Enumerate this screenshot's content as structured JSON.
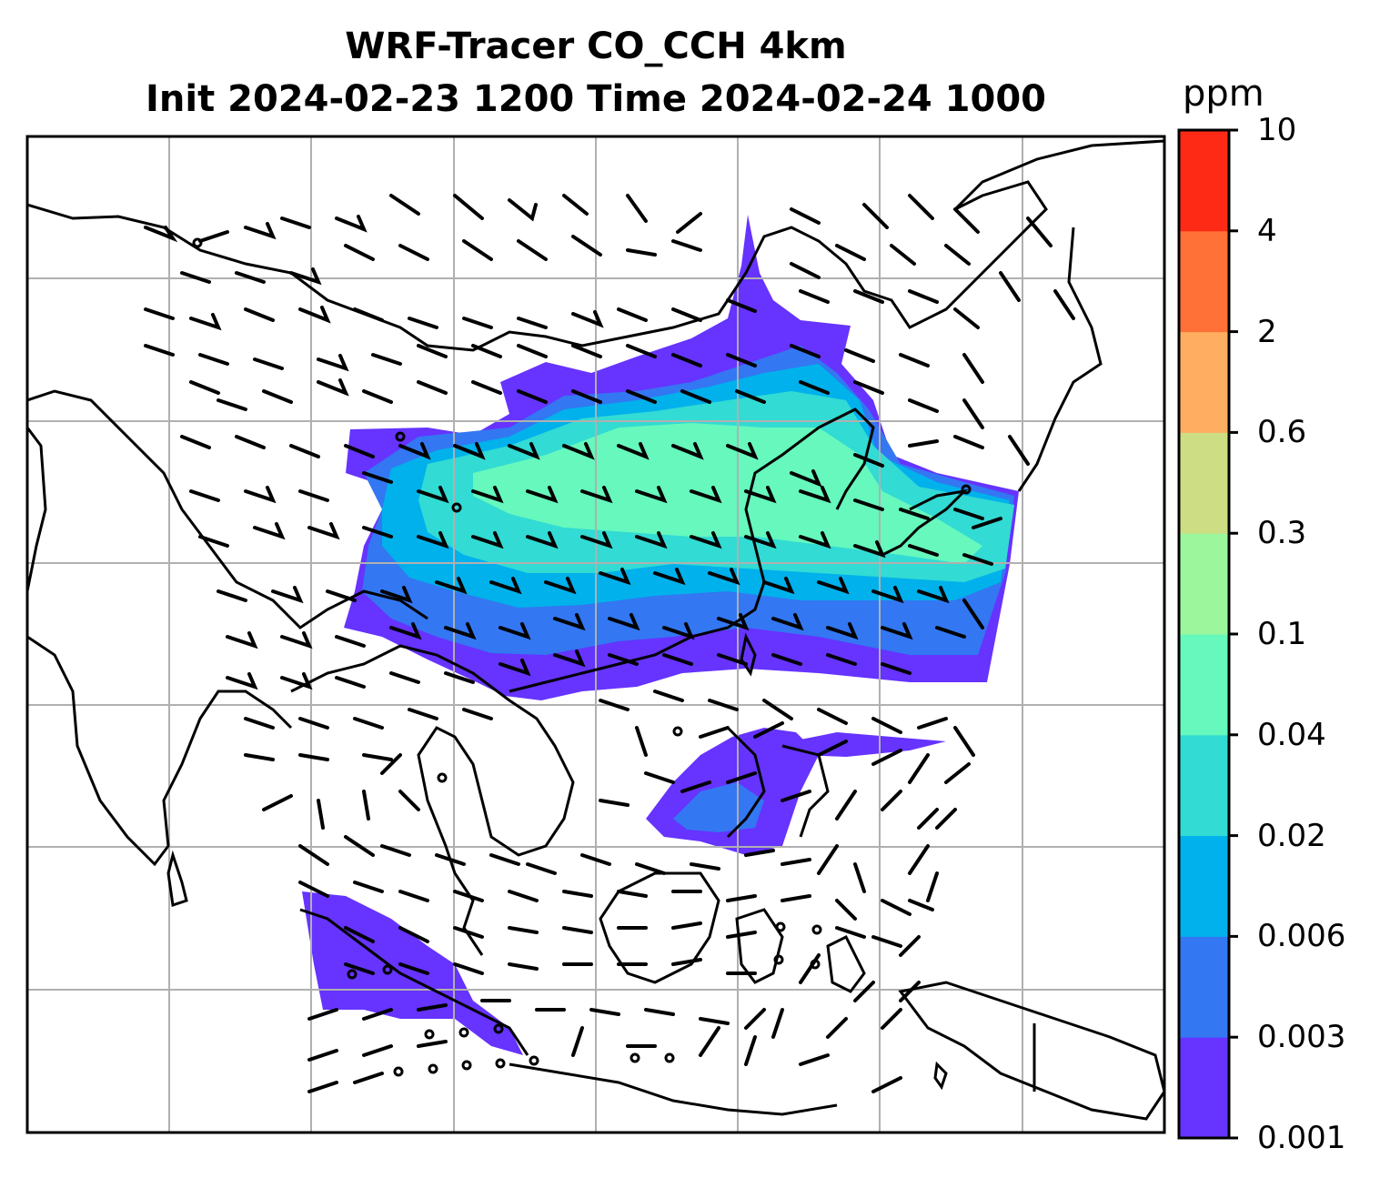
{
  "title": {
    "line1": "WRF-Tracer CO_CCH 4km",
    "line2": "Init 2024-02-23 1200 Time 2024-02-24 1000"
  },
  "colorbar": {
    "unit": "ppm",
    "ticks": [
      "0.001",
      "0.003",
      "0.006",
      "0.02",
      "0.04",
      "0.1",
      "0.3",
      "0.6",
      "2",
      "4",
      "10"
    ],
    "colors": [
      "#6633ff",
      "#3377f2",
      "#00b1ec",
      "#32dbd3",
      "#66f8bd",
      "#9cf79c",
      "#cddd84",
      "#ffad60",
      "#ff7137",
      "#ff2a16"
    ]
  },
  "map": {
    "gridlines": "on",
    "wind_barbs": "on",
    "background": "#ffffff",
    "line_color": "#000000",
    "grid_color": "#b0b0b0"
  }
}
